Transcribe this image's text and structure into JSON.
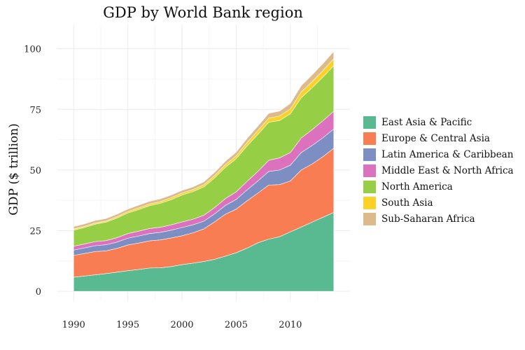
{
  "chart_data": {
    "type": "area",
    "stacked": true,
    "title": "GDP by World Bank region",
    "xlabel": "",
    "ylabel": "GDP ($ trillion)",
    "xlim": [
      1988.5,
      2015.5
    ],
    "ylim": [
      -4,
      110
    ],
    "x_ticks": [
      1990,
      1995,
      2000,
      2005,
      2010
    ],
    "y_ticks": [
      0,
      25,
      50,
      75,
      100
    ],
    "grid": true,
    "legend_position": "right",
    "x": [
      1990,
      1991,
      1992,
      1993,
      1994,
      1995,
      1996,
      1997,
      1998,
      1999,
      2000,
      2001,
      2002,
      2003,
      2004,
      2005,
      2006,
      2007,
      2008,
      2009,
      2010,
      2011,
      2012,
      2013,
      2014
    ],
    "series": [
      {
        "name": "East Asia & Pacific",
        "color": "#59BA92",
        "values": [
          5.8,
          6.3,
          6.8,
          7.3,
          7.9,
          8.5,
          9.0,
          9.6,
          9.7,
          10.2,
          11.0,
          11.6,
          12.3,
          13.2,
          14.5,
          15.9,
          17.8,
          20.0,
          21.5,
          22.5,
          24.5,
          26.5,
          28.5,
          30.5,
          32.5
        ]
      },
      {
        "name": "Europe & Central Asia",
        "color": "#F87D52",
        "values": [
          9.0,
          9.3,
          9.6,
          9.4,
          9.8,
          10.6,
          10.9,
          11.2,
          11.5,
          11.8,
          11.9,
          12.5,
          13.4,
          15.4,
          17.3,
          18.0,
          19.5,
          20.5,
          22.3,
          21.5,
          21.0,
          23.5,
          24.0,
          25.0,
          26.5
        ]
      },
      {
        "name": "Latin America & Caribbean",
        "color": "#7C8EC2",
        "values": [
          2.2,
          2.3,
          2.4,
          2.5,
          2.6,
          2.8,
          2.9,
          3.0,
          3.1,
          3.2,
          3.4,
          3.3,
          3.2,
          3.3,
          3.6,
          4.0,
          4.5,
          5.0,
          5.6,
          6.0,
          6.5,
          7.2,
          7.6,
          7.8,
          7.9
        ]
      },
      {
        "name": "Middle East & North Africa",
        "color": "#DC72BD",
        "values": [
          1.6,
          1.6,
          1.7,
          1.7,
          1.8,
          1.9,
          2.0,
          2.1,
          2.1,
          2.2,
          2.3,
          2.3,
          2.4,
          2.6,
          2.8,
          3.1,
          3.5,
          3.9,
          4.6,
          5.0,
          5.2,
          6.0,
          6.5,
          7.0,
          7.3
        ]
      },
      {
        "name": "North America",
        "color": "#96CF45",
        "values": [
          6.6,
          6.8,
          7.2,
          7.6,
          8.1,
          8.5,
          8.9,
          9.4,
          9.9,
          10.4,
          11.1,
          11.4,
          11.7,
          12.2,
          12.9,
          13.7,
          14.6,
          15.3,
          15.7,
          15.4,
          16.0,
          16.6,
          17.3,
          18.0,
          18.8
        ]
      },
      {
        "name": "South Asia",
        "color": "#FDD227",
        "values": [
          0.5,
          0.5,
          0.5,
          0.5,
          0.6,
          0.6,
          0.7,
          0.7,
          0.7,
          0.8,
          0.8,
          0.8,
          0.9,
          1.0,
          1.1,
          1.2,
          1.4,
          1.6,
          1.7,
          1.9,
          2.0,
          2.4,
          2.5,
          2.7,
          2.9
        ]
      },
      {
        "name": "Sub-Saharan Africa",
        "color": "#DCBA8C",
        "values": [
          1.0,
          1.0,
          1.0,
          1.0,
          1.0,
          1.0,
          1.1,
          1.1,
          1.1,
          1.1,
          1.1,
          1.1,
          1.2,
          1.3,
          1.4,
          1.5,
          1.7,
          1.8,
          2.0,
          2.0,
          2.3,
          2.6,
          2.8,
          2.9,
          3.0
        ]
      }
    ]
  }
}
